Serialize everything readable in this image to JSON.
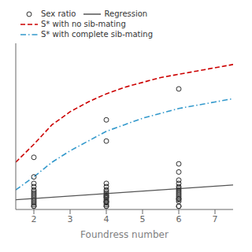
{
  "chart_data": {
    "type": "scatter",
    "title": "",
    "xlabel": "Foundress number",
    "ylabel": "",
    "xlim": [
      1.5,
      7.5
    ],
    "ylim": [
      -0.02,
      1.0
    ],
    "xticks": [
      2,
      3,
      4,
      5,
      6,
      7
    ],
    "yticks": [],
    "tick_labels": "x",
    "grid": false,
    "legend": "upper left",
    "series": [
      {
        "name": "Sex ratio",
        "type": "scatter",
        "color": "#333333",
        "marker": "circle",
        "x": [
          2,
          2,
          2,
          2,
          2,
          2,
          2,
          2,
          2,
          2,
          2,
          2,
          2,
          2,
          2,
          2,
          4,
          4,
          4,
          4,
          4,
          4,
          4,
          4,
          4,
          4,
          4,
          4,
          4,
          4,
          4,
          4,
          4,
          4,
          4,
          4,
          6,
          6,
          6,
          6,
          6,
          6,
          6,
          6,
          6,
          6,
          6,
          6,
          6,
          6,
          6,
          6,
          6,
          6
        ],
        "values": [
          0.0,
          0.0,
          0.01,
          0.02,
          0.03,
          0.04,
          0.05,
          0.06,
          0.07,
          0.08,
          0.09,
          0.1,
          0.12,
          0.14,
          0.18,
          0.3,
          0.0,
          0.0,
          0.01,
          0.02,
          0.03,
          0.04,
          0.05,
          0.06,
          0.07,
          0.08,
          0.09,
          0.1,
          0.12,
          0.14,
          0.4,
          0.53,
          0.03,
          0.025,
          0.055,
          0.065,
          0.0,
          0.0,
          0.03,
          0.05,
          0.06,
          0.07,
          0.08,
          0.09,
          0.1,
          0.11,
          0.12,
          0.14,
          0.16,
          0.21,
          0.26,
          0.72,
          0.04,
          0.045
        ]
      },
      {
        "name": "Regression",
        "type": "line",
        "color": "#555555",
        "line_style": "solid",
        "x": [
          1.5,
          7.5
        ],
        "values": [
          0.04,
          0.13
        ]
      },
      {
        "name": "S* with no sib-mating",
        "type": "line",
        "color": "#cc0000",
        "line_style": "dashed",
        "x": [
          1.5,
          2.0,
          2.5,
          3.0,
          3.5,
          4.0,
          4.5,
          5.0,
          5.5,
          6.0,
          6.5,
          7.0,
          7.5
        ],
        "values": [
          0.27,
          0.38,
          0.5,
          0.58,
          0.64,
          0.69,
          0.73,
          0.76,
          0.79,
          0.81,
          0.83,
          0.85,
          0.87
        ]
      },
      {
        "name": "S* with complete sib-mating",
        "type": "line",
        "color": "#3399cc",
        "line_style": "dashdot",
        "x": [
          1.5,
          2.0,
          2.5,
          3.0,
          3.5,
          4.0,
          4.5,
          5.0,
          5.5,
          6.0,
          6.5,
          7.0,
          7.5
        ],
        "values": [
          0.1,
          0.18,
          0.27,
          0.34,
          0.4,
          0.46,
          0.5,
          0.54,
          0.57,
          0.6,
          0.62,
          0.64,
          0.66
        ]
      }
    ]
  }
}
